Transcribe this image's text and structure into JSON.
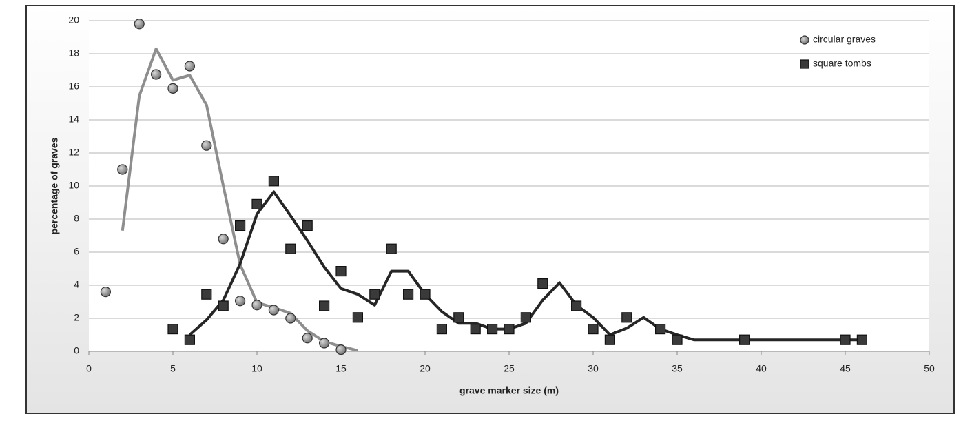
{
  "chart_data": {
    "type": "scatter",
    "xlabel": "grave marker size (m)",
    "ylabel": "percentage of graves",
    "xlim": [
      0,
      50
    ],
    "xticks": [
      0,
      5,
      10,
      15,
      20,
      25,
      30,
      35,
      40,
      45,
      50
    ],
    "ylim": [
      0,
      20
    ],
    "yticks": [
      0,
      2,
      4,
      6,
      8,
      10,
      12,
      14,
      16,
      18,
      20
    ],
    "grid": true,
    "legend": "top-right",
    "series": [
      {
        "name": "circular graves",
        "marker": "circle",
        "color": "#8a8a8a",
        "line_color": "#8e8e8e",
        "x": [
          1,
          2,
          3,
          4,
          5,
          6,
          7,
          8,
          9,
          10,
          11,
          12,
          13,
          14,
          15
        ],
        "values": [
          3.6,
          11.0,
          19.8,
          16.75,
          15.9,
          17.25,
          12.45,
          6.8,
          3.05,
          2.8,
          2.5,
          2.0,
          0.8,
          0.5,
          0.1
        ],
        "trend": {
          "x": [
            2,
            3,
            4,
            5,
            6,
            7,
            8,
            9,
            10,
            11,
            12,
            13,
            14,
            15,
            16
          ],
          "values": [
            7.3,
            15.45,
            18.3,
            16.4,
            16.7,
            14.9,
            10.0,
            5.25,
            2.95,
            2.65,
            2.3,
            1.25,
            0.6,
            0.3,
            0.05
          ]
        }
      },
      {
        "name": "square tombs",
        "marker": "square",
        "color": "#3a3a3a",
        "line_color": "#262626",
        "x": [
          5,
          6,
          7,
          8,
          9,
          10,
          11,
          12,
          13,
          14,
          15,
          16,
          17,
          18,
          19,
          20,
          21,
          22,
          23,
          24,
          25,
          26,
          27,
          29,
          30,
          31,
          32,
          34,
          35,
          39,
          45,
          46
        ],
        "values": [
          1.35,
          0.7,
          3.45,
          2.75,
          7.6,
          8.9,
          10.3,
          6.2,
          7.6,
          2.75,
          4.85,
          2.05,
          3.45,
          6.2,
          3.45,
          3.45,
          1.35,
          2.05,
          1.35,
          1.35,
          1.35,
          2.05,
          4.1,
          2.75,
          1.35,
          0.7,
          2.05,
          1.35,
          0.7,
          0.7,
          0.7,
          0.7
        ],
        "trend": {
          "x": [
            6,
            7,
            8,
            9,
            10,
            11,
            12,
            13,
            14,
            15,
            16,
            17,
            18,
            19,
            20,
            21,
            22,
            23,
            24,
            25,
            26,
            27,
            28,
            29,
            30,
            31,
            32,
            33,
            34,
            35,
            36,
            46
          ],
          "values": [
            1.0,
            1.9,
            3.1,
            5.3,
            8.3,
            9.65,
            8.2,
            6.7,
            5.1,
            3.8,
            3.45,
            2.8,
            4.85,
            4.85,
            3.45,
            2.4,
            1.7,
            1.7,
            1.35,
            1.35,
            1.7,
            3.1,
            4.15,
            2.8,
            2.05,
            1.0,
            1.4,
            2.05,
            1.35,
            1.0,
            0.7,
            0.7
          ]
        }
      }
    ]
  }
}
